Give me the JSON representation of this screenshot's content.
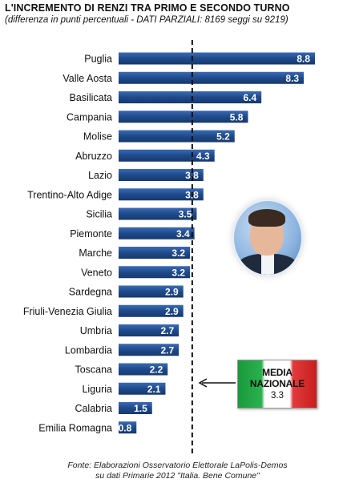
{
  "header": {
    "title": "L'INCREMENTO DI RENZI TRA PRIMO E SECONDO TURNO",
    "subtitle": "(differenza in punti percentuali - DATI PARZIALI: 8169 seggi su 9219)"
  },
  "chart_data": {
    "type": "bar",
    "orientation": "horizontal",
    "categories": [
      "Puglia",
      "Valle Aosta",
      "Basilicata",
      "Campania",
      "Molise",
      "Abruzzo",
      "Lazio",
      "Trentino-Alto Adige",
      "Sicilia",
      "Piemonte",
      "Marche",
      "Veneto",
      "Sardegna",
      "Friuli-Venezia Giulia",
      "Umbria",
      "Lombardia",
      "Toscana",
      "Liguria",
      "Calabria",
      "Emilia Romagna"
    ],
    "values": [
      8.8,
      8.3,
      6.4,
      5.8,
      5.2,
      4.3,
      3.8,
      3.8,
      3.5,
      3.4,
      3.2,
      3.2,
      2.9,
      2.9,
      2.7,
      2.7,
      2.2,
      2.1,
      1.5,
      0.8
    ],
    "value_labels": [
      "8.8",
      "8.3",
      "6.4",
      "5.8",
      "5.2",
      "4.3",
      "3.8",
      "3.8",
      "3.5",
      "3.4",
      "3.2",
      "3.2",
      "2.9",
      "2.9",
      "2.7",
      "2.7",
      "2.2",
      "2.1",
      "1.5",
      "0.8"
    ],
    "reference_line": {
      "value": 3.3,
      "style": "dashed"
    },
    "bar_color": "#1f4a8a",
    "grid": false
  },
  "callout": {
    "label": "MEDIA NAZIONALE",
    "value": "3.3",
    "colors": [
      "#1a9a3a",
      "#ffffff",
      "#c71f1f"
    ]
  },
  "photo": {
    "icon": "person-portrait"
  },
  "footer": {
    "line1": "Fonte: Elaborazioni Osservatorio Elettorale LaPolis-Demos",
    "line2": "su dati Primarie 2012 \"Italia. Bene Comune\""
  }
}
